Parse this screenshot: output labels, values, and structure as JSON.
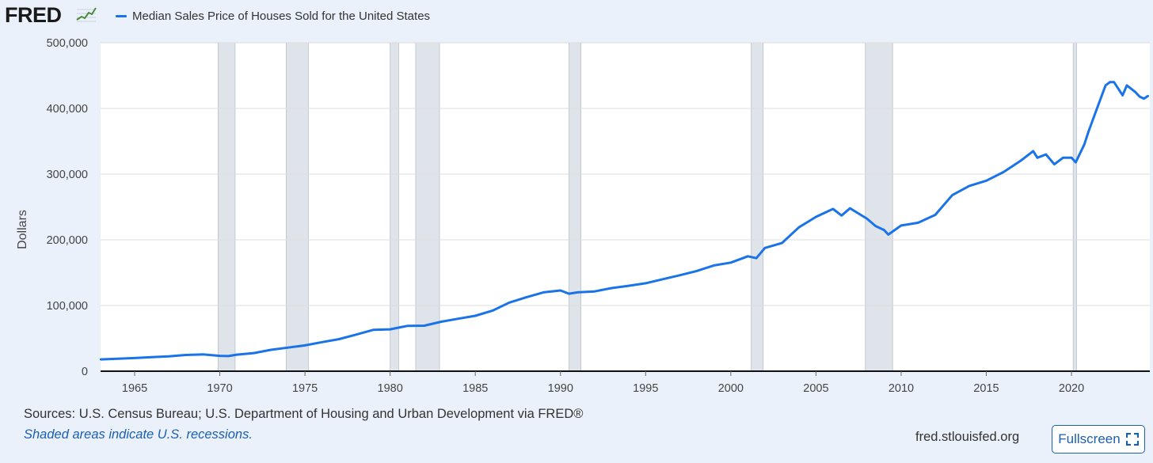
{
  "header": {
    "logo_text": "FRED",
    "logo_icon": "fred-line-graph-icon",
    "legend_label": "Median Sales Price of Houses Sold for the United States",
    "series_color": "#1a73e8"
  },
  "footer": {
    "source": "Sources: U.S. Census Bureau; U.S. Department of Housing and Urban Development via FRED®",
    "recession_note": "Shaded areas indicate U.S. recessions.",
    "site": "fred.stlouisfed.org",
    "fullscreen_label": "Fullscreen",
    "fullscreen_icon": "fullscreen-icon"
  },
  "colors": {
    "background": "#eaf1fa",
    "plot_background": "#ffffff",
    "recession_shade": "#dfe4ea",
    "line": "#1a73e8",
    "link": "#1b5fb0"
  },
  "chart_data": {
    "type": "line",
    "title": "",
    "xlabel": "",
    "ylabel": "Dollars",
    "xlim": [
      1963,
      2024.6
    ],
    "ylim": [
      0,
      500000
    ],
    "grid": true,
    "legend_position": "top-left",
    "y_ticks": [
      0,
      100000,
      200000,
      300000,
      400000,
      500000
    ],
    "y_tick_labels": [
      "0",
      "100,000",
      "200,000",
      "300,000",
      "400,000",
      "500,000"
    ],
    "x_ticks": [
      1965,
      1970,
      1975,
      1980,
      1985,
      1990,
      1995,
      2000,
      2005,
      2010,
      2015,
      2020
    ],
    "x_tick_labels": [
      "1965",
      "1970",
      "1975",
      "1980",
      "1985",
      "1990",
      "1995",
      "2000",
      "2005",
      "2010",
      "2015",
      "2020"
    ],
    "recessions": [
      [
        1969.9,
        1970.9
      ],
      [
        1973.9,
        1975.2
      ],
      [
        1980.0,
        1980.5
      ],
      [
        1981.5,
        1982.9
      ],
      [
        1990.5,
        1991.2
      ],
      [
        2001.2,
        2001.9
      ],
      [
        2007.9,
        2009.5
      ],
      [
        2020.1,
        2020.3
      ]
    ],
    "series": [
      {
        "name": "Median Sales Price of Houses Sold for the United States",
        "x": [
          1963.0,
          1964.0,
          1965.0,
          1966.0,
          1967.0,
          1968.0,
          1969.0,
          1970.0,
          1970.5,
          1971.0,
          1972.0,
          1973.0,
          1974.0,
          1975.0,
          1976.0,
          1977.0,
          1978.0,
          1979.0,
          1980.0,
          1981.0,
          1982.0,
          1983.0,
          1984.0,
          1985.0,
          1986.0,
          1987.0,
          1988.0,
          1989.0,
          1990.0,
          1990.5,
          1991.0,
          1992.0,
          1993.0,
          1994.0,
          1995.0,
          1996.0,
          1997.0,
          1998.0,
          1999.0,
          2000.0,
          2001.0,
          2001.5,
          2002.0,
          2003.0,
          2004.0,
          2005.0,
          2006.0,
          2006.5,
          2007.0,
          2008.0,
          2008.5,
          2009.0,
          2009.25,
          2010.0,
          2011.0,
          2012.0,
          2013.0,
          2014.0,
          2015.0,
          2016.0,
          2017.0,
          2017.75,
          2018.0,
          2018.5,
          2019.0,
          2019.5,
          2020.0,
          2020.25,
          2020.75,
          2021.0,
          2021.5,
          2022.0,
          2022.25,
          2022.5,
          2022.75,
          2023.0,
          2023.25,
          2023.5,
          2023.75,
          2024.0,
          2024.25,
          2024.5
        ],
        "values": [
          18000,
          18900,
          20000,
          21400,
          22700,
          24700,
          25600,
          23400,
          23000,
          25200,
          27600,
          32500,
          35900,
          39300,
          44200,
          48800,
          55700,
          62900,
          63700,
          68900,
          69300,
          75300,
          79900,
          84300,
          92000,
          104500,
          112500,
          120000,
          122900,
          118000,
          120000,
          121500,
          126500,
          130000,
          133900,
          140000,
          146000,
          152500,
          161000,
          165300,
          175000,
          172000,
          187600,
          195000,
          219000,
          235000,
          247000,
          237000,
          248000,
          232000,
          221000,
          215000,
          208000,
          221800,
          226000,
          238000,
          268000,
          282000,
          290000,
          303000,
          320000,
          335000,
          325000,
          330000,
          315000,
          325000,
          325000,
          318000,
          345000,
          365000,
          400000,
          435000,
          440000,
          440000,
          430000,
          420000,
          435000,
          430000,
          425000,
          418000,
          415000,
          419000
        ]
      }
    ]
  }
}
